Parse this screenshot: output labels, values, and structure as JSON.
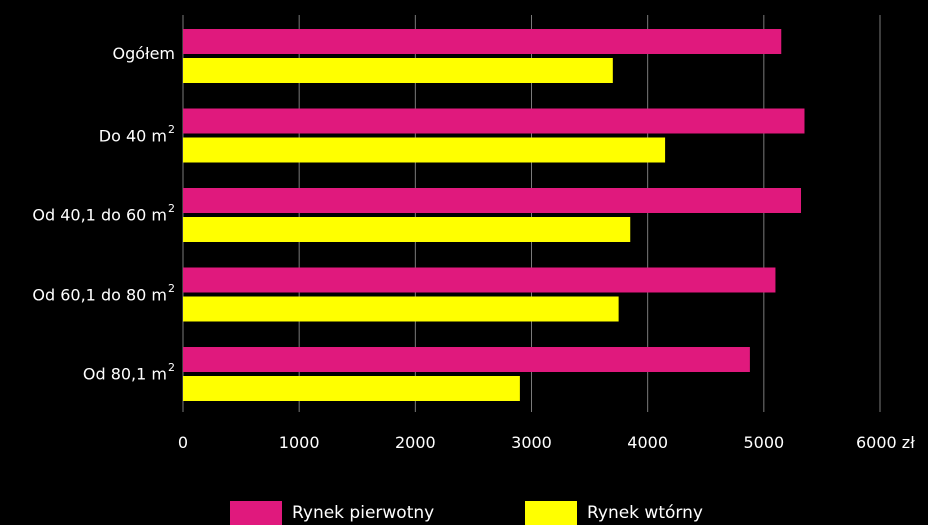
{
  "chart_data": {
    "type": "bar",
    "orientation": "horizontal",
    "categories": [
      {
        "label": "Ogółem",
        "superscript": ""
      },
      {
        "label": "Do 40 m",
        "superscript": "2"
      },
      {
        "label": "Od 40,1 do 60 m",
        "superscript": "2"
      },
      {
        "label": "Od 60,1 do 80 m",
        "superscript": "2"
      },
      {
        "label": "Od 80,1 m",
        "superscript": "2"
      }
    ],
    "series": [
      {
        "name": "Rynek pierwotny",
        "color": "#e0197d",
        "values": [
          5150,
          5350,
          5320,
          5100,
          4880
        ]
      },
      {
        "name": "Rynek wtórny",
        "color": "#ffff00",
        "values": [
          3700,
          4150,
          3850,
          3750,
          2900
        ]
      }
    ],
    "xlim": [
      0,
      6000
    ],
    "x_ticks": [
      "0",
      "1000",
      "2000",
      "3000",
      "4000",
      "5000",
      "6000 zł"
    ],
    "grid": true,
    "legend_position": "bottom"
  }
}
